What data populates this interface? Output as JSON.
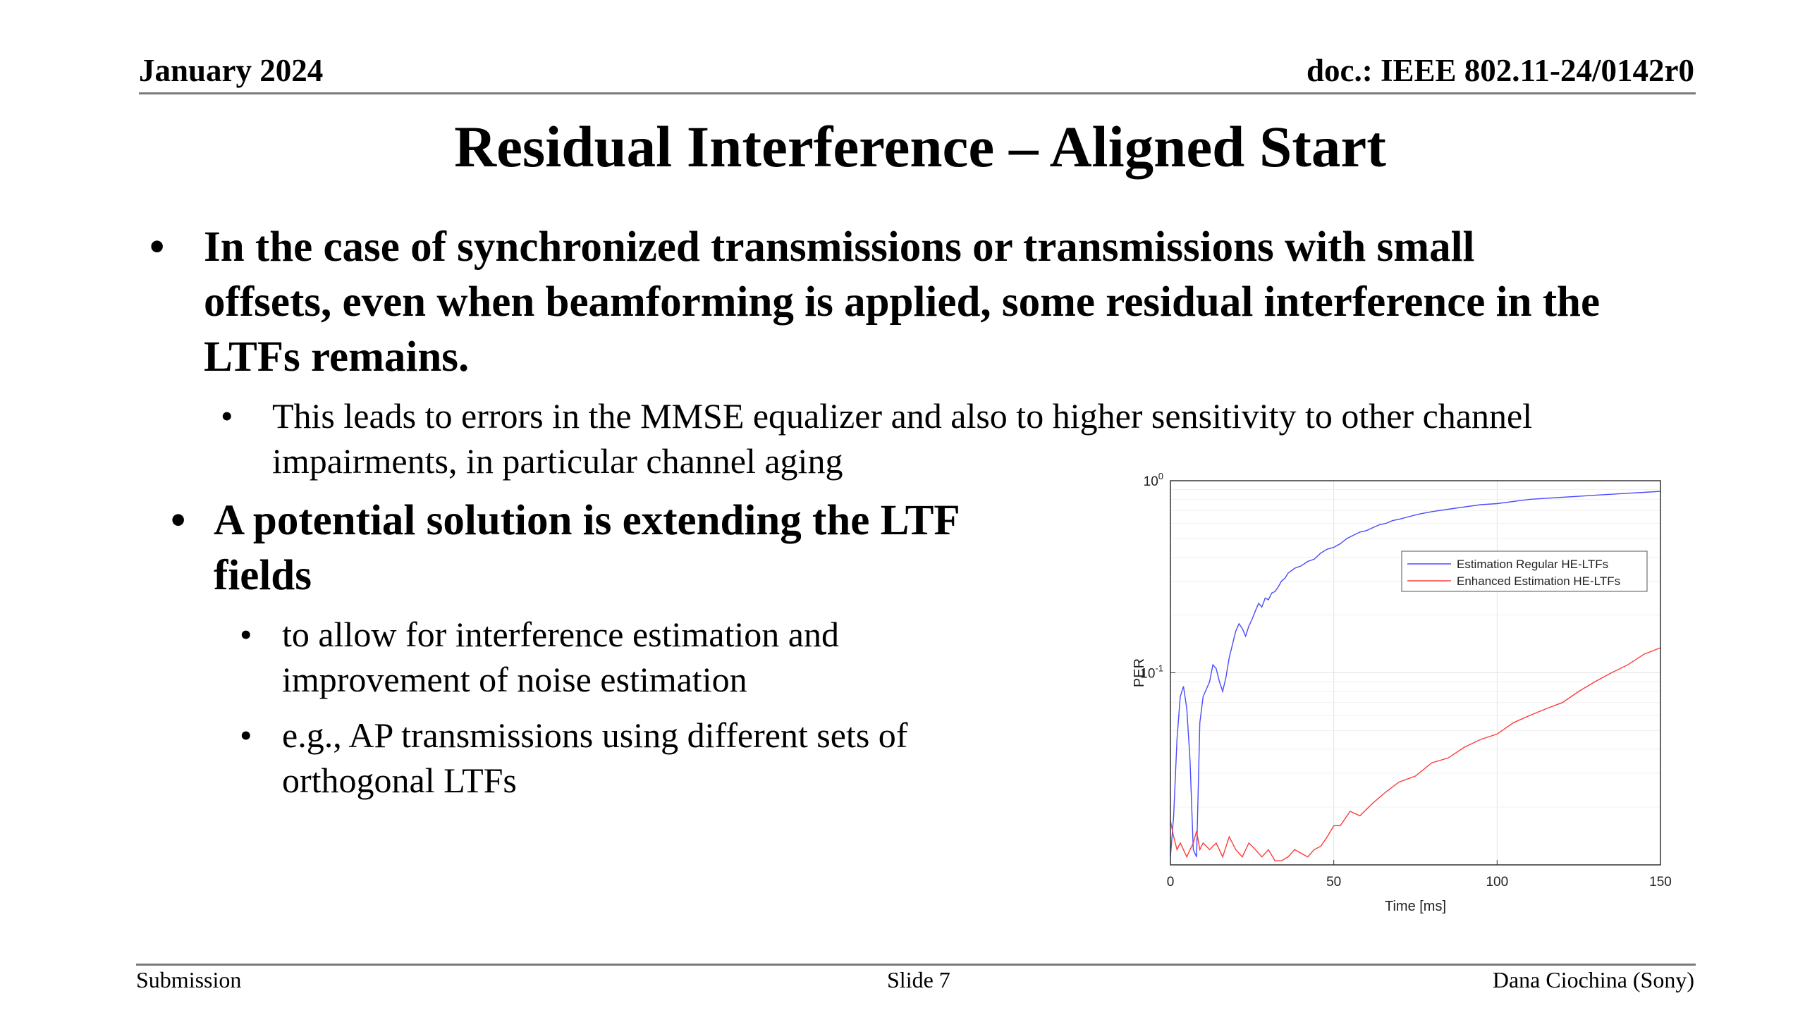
{
  "header": {
    "date": "January 2024",
    "doc": "doc.: IEEE 802.11-24/0142r0"
  },
  "title": "Residual Interference – Aligned Start",
  "bullets": {
    "b1": {
      "line1": "In the case of synchronized transmissions or transmissions with small",
      "line2": "offsets, even when beamforming is applied, some residual interference in the",
      "line3": "LTFs remains."
    },
    "b1_sub": {
      "line1": "This leads to errors in the MMSE equalizer and also to higher sensitivity to other channel",
      "line2": "impairments, in particular channel aging"
    },
    "b2": {
      "line1": "A potential solution is extending the LTF",
      "line2": "fields"
    },
    "b2_sub1": {
      "line1": "to allow for interference estimation and",
      "line2": "improvement of noise estimation"
    },
    "b2_sub2": {
      "line1": "e.g., AP transmissions using different sets of",
      "line2": "orthogonal LTFs"
    },
    "marker": "•"
  },
  "footer": {
    "left": "Submission",
    "center": "Slide 7",
    "right": "Dana Ciochina (Sony)"
  },
  "chart_data": {
    "type": "line",
    "xlabel": "Time [ms]",
    "ylabel": "PER",
    "xlim": [
      0,
      150
    ],
    "ylim": [
      0.01,
      1
    ],
    "yscale": "log",
    "xticks": [
      "0",
      "50",
      "100",
      "150"
    ],
    "yticks": [
      {
        "base": "10",
        "exp": "0"
      },
      {
        "base": "10",
        "exp": "-1"
      }
    ],
    "grid": true,
    "legend_position": "upper-right",
    "colors": {
      "blue": "#4a4aff",
      "red": "#ff3a3a"
    },
    "series": [
      {
        "name": "Estimation Regular HE-LTFs",
        "color": "#4a4aff",
        "x": [
          0,
          1,
          2,
          3,
          4,
          5,
          6,
          7,
          8,
          9,
          10,
          12,
          13,
          14,
          15,
          16,
          17,
          18,
          20,
          21,
          22,
          23,
          24,
          25,
          26,
          27,
          28,
          29,
          30,
          31,
          32,
          33,
          34,
          35,
          36,
          37,
          38,
          40,
          42,
          44,
          46,
          48,
          50,
          52,
          54,
          56,
          58,
          60,
          62,
          64,
          66,
          68,
          70,
          73,
          76,
          80,
          85,
          90,
          95,
          100,
          105,
          110,
          115,
          120,
          125,
          130,
          135,
          140,
          145,
          150
        ],
        "y": [
          0.011,
          0.018,
          0.045,
          0.075,
          0.085,
          0.065,
          0.035,
          0.012,
          0.011,
          0.055,
          0.075,
          0.09,
          0.11,
          0.105,
          0.09,
          0.08,
          0.095,
          0.12,
          0.165,
          0.18,
          0.17,
          0.155,
          0.175,
          0.19,
          0.21,
          0.23,
          0.22,
          0.245,
          0.24,
          0.26,
          0.265,
          0.28,
          0.3,
          0.31,
          0.33,
          0.34,
          0.35,
          0.36,
          0.38,
          0.39,
          0.42,
          0.44,
          0.45,
          0.47,
          0.5,
          0.52,
          0.54,
          0.55,
          0.57,
          0.59,
          0.6,
          0.62,
          0.63,
          0.65,
          0.67,
          0.69,
          0.71,
          0.73,
          0.75,
          0.76,
          0.78,
          0.8,
          0.81,
          0.82,
          0.83,
          0.84,
          0.85,
          0.86,
          0.87,
          0.88
        ]
      },
      {
        "name": "Enhanced Estimation HE-LTFs",
        "color": "#ff3a3a",
        "x": [
          0,
          1,
          2,
          3,
          4,
          5,
          6,
          7,
          8,
          9,
          10,
          12,
          14,
          16,
          18,
          20,
          22,
          24,
          26,
          28,
          30,
          32,
          34,
          36,
          38,
          40,
          42,
          44,
          46,
          48,
          50,
          52,
          55,
          58,
          62,
          66,
          70,
          75,
          80,
          85,
          90,
          95,
          100,
          105,
          110,
          115,
          120,
          125,
          130,
          135,
          140,
          145,
          150
        ],
        "y": [
          0.017,
          0.014,
          0.012,
          0.013,
          0.012,
          0.011,
          0.012,
          0.013,
          0.015,
          0.012,
          0.013,
          0.012,
          0.013,
          0.011,
          0.014,
          0.012,
          0.011,
          0.013,
          0.012,
          0.011,
          0.012,
          0.0105,
          0.0105,
          0.011,
          0.012,
          0.0115,
          0.011,
          0.012,
          0.0125,
          0.014,
          0.016,
          0.016,
          0.019,
          0.018,
          0.021,
          0.024,
          0.027,
          0.029,
          0.034,
          0.036,
          0.041,
          0.045,
          0.048,
          0.055,
          0.06,
          0.065,
          0.07,
          0.08,
          0.09,
          0.1,
          0.11,
          0.125,
          0.135
        ]
      }
    ]
  }
}
